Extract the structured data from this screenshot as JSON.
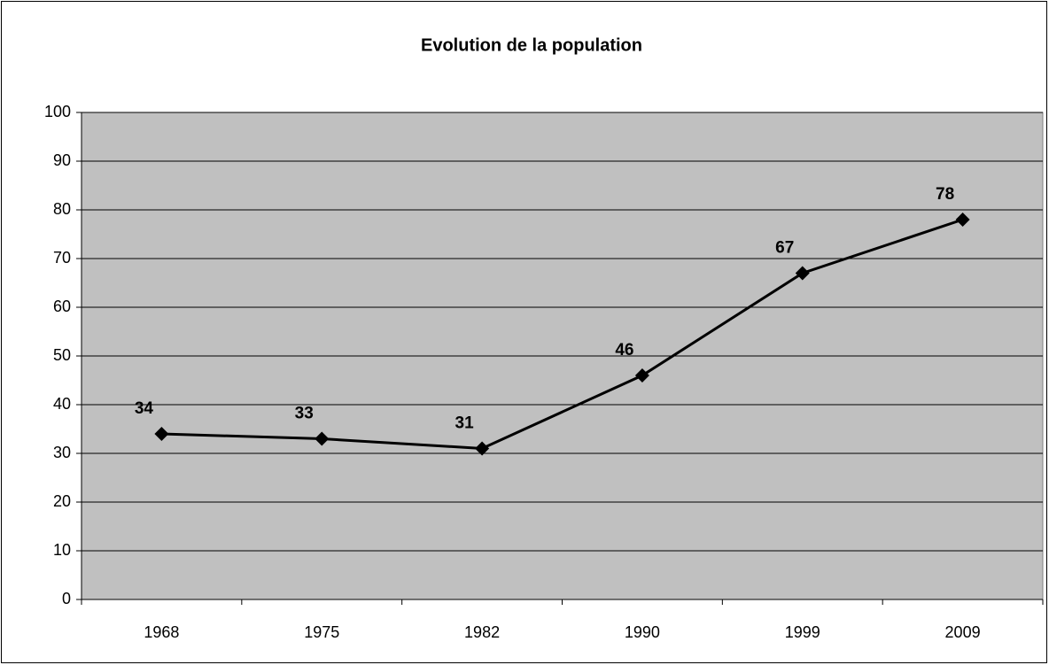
{
  "chart_data": {
    "type": "line",
    "title": "Evolution de la population",
    "categories": [
      "1968",
      "1975",
      "1982",
      "1990",
      "1999",
      "2009"
    ],
    "values": [
      34,
      33,
      31,
      46,
      67,
      78
    ],
    "color": "#000000",
    "ylim": [
      0,
      100
    ],
    "yticks": [
      0,
      10,
      20,
      30,
      40,
      50,
      60,
      70,
      80,
      90,
      100
    ],
    "grid": true
  }
}
